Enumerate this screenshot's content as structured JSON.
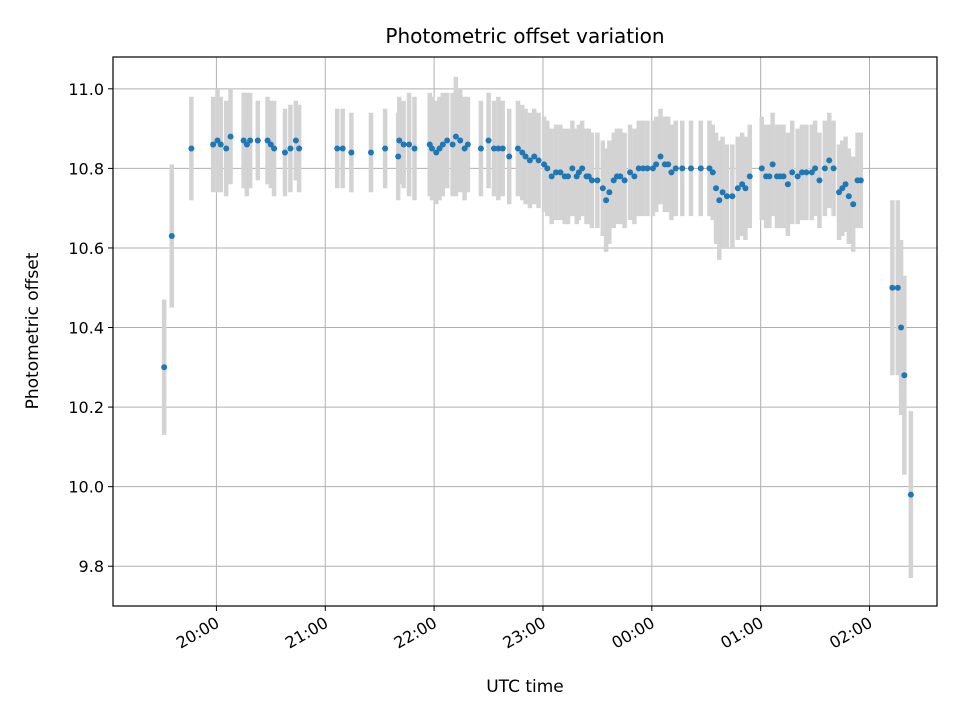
{
  "chart_data": {
    "type": "scatter",
    "title": "Photometric offset variation",
    "xlabel": "UTC time",
    "ylabel": "Photometric offset",
    "x_unit": "hours_since_midnight_UTC",
    "xlim": [
      19.05,
      26.62
    ],
    "ylim": [
      9.7,
      11.08
    ],
    "x_ticks": [
      20,
      21,
      22,
      23,
      24,
      25,
      26
    ],
    "x_tick_labels": [
      "20:00",
      "21:00",
      "22:00",
      "23:00",
      "00:00",
      "01:00",
      "02:00"
    ],
    "y_ticks": [
      9.8,
      10.0,
      10.2,
      10.4,
      10.6,
      10.8,
      11.0
    ],
    "y_tick_labels": [
      "9.8",
      "10.0",
      "10.2",
      "10.4",
      "10.6",
      "10.8",
      "11.0"
    ],
    "grid": true,
    "legend": "none",
    "marker_color": "#1f77b4",
    "errorbar_color": "#d3d3d3",
    "series": [
      {
        "x": [
          19.52,
          19.59,
          19.77,
          19.97,
          20.01,
          20.04,
          20.09,
          20.13,
          20.25,
          20.28,
          20.31,
          20.38,
          20.47,
          20.5,
          20.53,
          20.63,
          20.68,
          20.73,
          20.76,
          21.11,
          21.16,
          21.24,
          21.42,
          21.55,
          21.67,
          21.68,
          21.72,
          21.77,
          21.82,
          21.96,
          21.98,
          22.02,
          22.05,
          22.08,
          22.12,
          22.17,
          22.2,
          22.24,
          22.28,
          22.31,
          22.43,
          22.5,
          22.55,
          22.59,
          22.63,
          22.69,
          22.77,
          22.81,
          22.84,
          22.88,
          22.92,
          22.96,
          23.01,
          23.04,
          23.08,
          23.12,
          23.16,
          23.2,
          23.23,
          23.27,
          23.31,
          23.33,
          23.36,
          23.4,
          23.42,
          23.45,
          23.5,
          23.55,
          23.58,
          23.61,
          23.65,
          23.68,
          23.71,
          23.75,
          23.8,
          23.84,
          23.88,
          23.92,
          23.96,
          24.01,
          24.04,
          24.08,
          24.12,
          24.15,
          24.18,
          24.22,
          24.28,
          24.36,
          24.45,
          24.53,
          24.56,
          24.59,
          24.62,
          24.65,
          24.69,
          24.74,
          24.79,
          24.83,
          24.86,
          24.9,
          25.01,
          25.05,
          25.08,
          25.11,
          25.15,
          25.18,
          25.21,
          25.25,
          25.29,
          25.34,
          25.38,
          25.42,
          25.47,
          25.5,
          25.54,
          25.59,
          25.63,
          25.67,
          25.72,
          25.75,
          25.78,
          25.81,
          25.85,
          25.89,
          25.92,
          26.21,
          26.26,
          26.29,
          26.32,
          26.38
        ],
        "y": [
          10.3,
          10.63,
          10.85,
          10.86,
          10.87,
          10.86,
          10.85,
          10.88,
          10.87,
          10.86,
          10.87,
          10.87,
          10.87,
          10.86,
          10.85,
          10.84,
          10.85,
          10.87,
          10.85,
          10.85,
          10.85,
          10.84,
          10.84,
          10.85,
          10.83,
          10.87,
          10.86,
          10.86,
          10.85,
          10.86,
          10.85,
          10.84,
          10.85,
          10.86,
          10.87,
          10.86,
          10.88,
          10.87,
          10.85,
          10.86,
          10.85,
          10.87,
          10.85,
          10.85,
          10.85,
          10.83,
          10.85,
          10.84,
          10.83,
          10.82,
          10.83,
          10.82,
          10.81,
          10.8,
          10.78,
          10.79,
          10.79,
          10.78,
          10.78,
          10.8,
          10.78,
          10.79,
          10.8,
          10.78,
          10.78,
          10.77,
          10.77,
          10.75,
          10.72,
          10.74,
          10.77,
          10.78,
          10.78,
          10.77,
          10.79,
          10.78,
          10.8,
          10.8,
          10.8,
          10.8,
          10.81,
          10.83,
          10.81,
          10.81,
          10.79,
          10.8,
          10.8,
          10.8,
          10.8,
          10.8,
          10.79,
          10.75,
          10.72,
          10.74,
          10.73,
          10.73,
          10.75,
          10.76,
          10.75,
          10.78,
          10.8,
          10.78,
          10.78,
          10.81,
          10.78,
          10.78,
          10.78,
          10.76,
          10.79,
          10.78,
          10.79,
          10.79,
          10.79,
          10.8,
          10.77,
          10.8,
          10.82,
          10.8,
          10.74,
          10.75,
          10.76,
          10.73,
          10.71,
          10.77,
          10.77,
          10.5,
          10.5,
          10.4,
          10.28,
          9.98
        ],
        "yerr": [
          0.17,
          0.18,
          0.13,
          0.12,
          0.13,
          0.12,
          0.12,
          0.12,
          0.12,
          0.13,
          0.12,
          0.1,
          0.11,
          0.11,
          0.12,
          0.11,
          0.11,
          0.1,
          0.11,
          0.1,
          0.1,
          0.1,
          0.1,
          0.1,
          0.11,
          0.11,
          0.11,
          0.13,
          0.13,
          0.13,
          0.13,
          0.13,
          0.13,
          0.13,
          0.12,
          0.13,
          0.15,
          0.13,
          0.13,
          0.12,
          0.12,
          0.12,
          0.12,
          0.13,
          0.12,
          0.12,
          0.12,
          0.12,
          0.12,
          0.12,
          0.12,
          0.12,
          0.12,
          0.12,
          0.12,
          0.12,
          0.12,
          0.12,
          0.12,
          0.12,
          0.12,
          0.12,
          0.12,
          0.12,
          0.12,
          0.12,
          0.12,
          0.12,
          0.13,
          0.13,
          0.12,
          0.12,
          0.12,
          0.12,
          0.12,
          0.12,
          0.12,
          0.12,
          0.12,
          0.12,
          0.12,
          0.12,
          0.12,
          0.12,
          0.12,
          0.12,
          0.12,
          0.12,
          0.12,
          0.12,
          0.12,
          0.14,
          0.15,
          0.14,
          0.13,
          0.13,
          0.13,
          0.13,
          0.13,
          0.13,
          0.13,
          0.13,
          0.13,
          0.13,
          0.13,
          0.13,
          0.13,
          0.13,
          0.13,
          0.12,
          0.12,
          0.12,
          0.12,
          0.12,
          0.12,
          0.12,
          0.12,
          0.12,
          0.12,
          0.12,
          0.12,
          0.12,
          0.12,
          0.12,
          0.12,
          0.22,
          0.22,
          0.22,
          0.25,
          0.21
        ]
      }
    ]
  }
}
